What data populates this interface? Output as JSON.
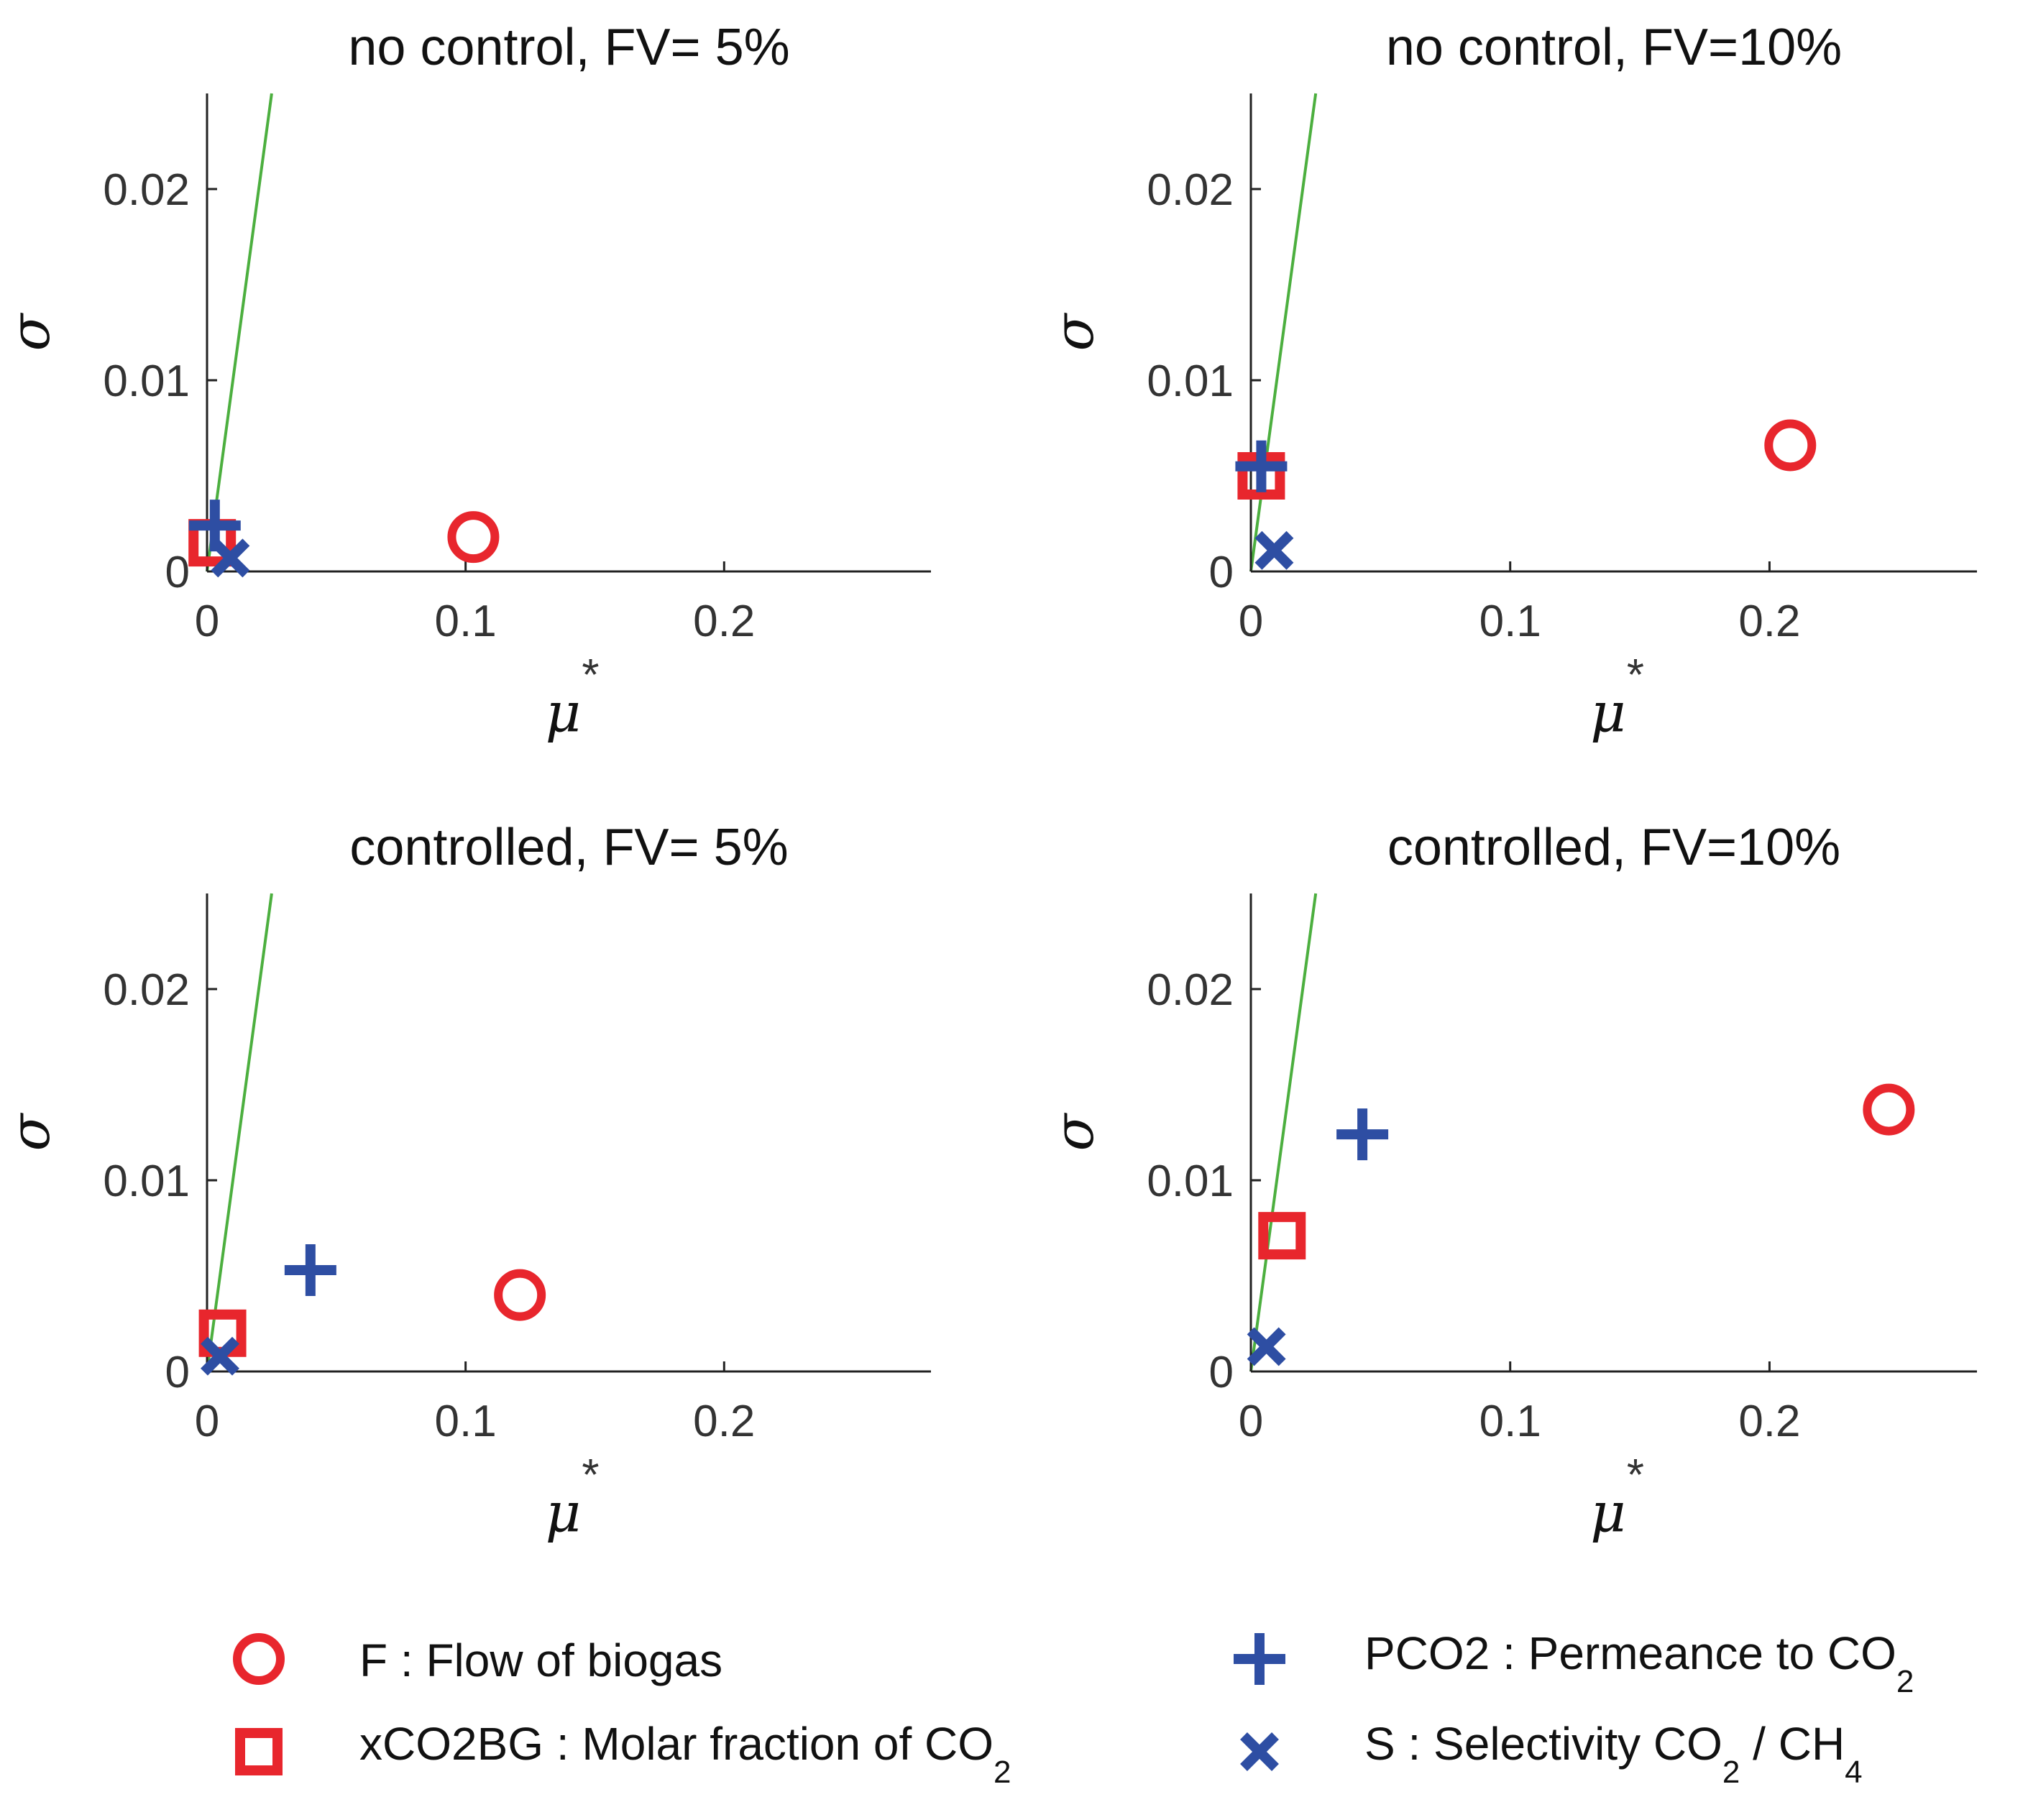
{
  "colors": {
    "red": "#e8262d",
    "blue": "#2e4ea3",
    "green": "#4caf3f",
    "axis": "#222222"
  },
  "chart_data": [
    {
      "type": "scatter",
      "title": "no control, FV= 5%",
      "xlabel": "μ",
      "xlabel_sup": "*",
      "ylabel": "σ",
      "xlim": [
        0,
        0.28
      ],
      "ylim": [
        0,
        0.025
      ],
      "xticks": [
        0,
        0.1,
        0.2
      ],
      "xtick_labels": [
        "0",
        "0.1",
        "0.2"
      ],
      "yticks": [
        0,
        0.01,
        0.02
      ],
      "ytick_labels": [
        "0",
        "0.01",
        "0.02"
      ],
      "reference_line": [
        [
          0,
          0
        ],
        [
          0.025,
          0.025
        ]
      ],
      "points": [
        {
          "param": "F",
          "marker": "circle",
          "x": 0.103,
          "y": 0.0018
        },
        {
          "param": "xCO2BG",
          "marker": "square",
          "x": 0.002,
          "y": 0.0015
        },
        {
          "param": "PCO2",
          "marker": "plus",
          "x": 0.003,
          "y": 0.0024
        },
        {
          "param": "S",
          "marker": "cross",
          "x": 0.009,
          "y": 0.0007
        }
      ]
    },
    {
      "type": "scatter",
      "title": "no control, FV=10%",
      "xlabel": "μ",
      "xlabel_sup": "*",
      "ylabel": "σ",
      "xlim": [
        0,
        0.28
      ],
      "ylim": [
        0,
        0.025
      ],
      "xticks": [
        0,
        0.1,
        0.2
      ],
      "xtick_labels": [
        "0",
        "0.1",
        "0.2"
      ],
      "yticks": [
        0,
        0.01,
        0.02
      ],
      "ytick_labels": [
        "0",
        "0.01",
        "0.02"
      ],
      "reference_line": [
        [
          0,
          0
        ],
        [
          0.025,
          0.025
        ]
      ],
      "points": [
        {
          "param": "F",
          "marker": "circle",
          "x": 0.208,
          "y": 0.0066
        },
        {
          "param": "xCO2BG",
          "marker": "square",
          "x": 0.004,
          "y": 0.005
        },
        {
          "param": "PCO2",
          "marker": "plus",
          "x": 0.004,
          "y": 0.0055
        },
        {
          "param": "S",
          "marker": "cross",
          "x": 0.009,
          "y": 0.0011
        }
      ]
    },
    {
      "type": "scatter",
      "title": "controlled, FV= 5%",
      "xlabel": "μ",
      "xlabel_sup": "*",
      "ylabel": "σ",
      "xlim": [
        0,
        0.28
      ],
      "ylim": [
        0,
        0.025
      ],
      "xticks": [
        0,
        0.1,
        0.2
      ],
      "xtick_labels": [
        "0",
        "0.1",
        "0.2"
      ],
      "yticks": [
        0,
        0.01,
        0.02
      ],
      "ytick_labels": [
        "0",
        "0.01",
        "0.02"
      ],
      "reference_line": [
        [
          0,
          0
        ],
        [
          0.025,
          0.025
        ]
      ],
      "points": [
        {
          "param": "F",
          "marker": "circle",
          "x": 0.121,
          "y": 0.004
        },
        {
          "param": "xCO2BG",
          "marker": "square",
          "x": 0.006,
          "y": 0.002
        },
        {
          "param": "PCO2",
          "marker": "plus",
          "x": 0.04,
          "y": 0.0053
        },
        {
          "param": "S",
          "marker": "cross",
          "x": 0.005,
          "y": 0.0008
        }
      ]
    },
    {
      "type": "scatter",
      "title": "controlled, FV=10%",
      "xlabel": "μ",
      "xlabel_sup": "*",
      "ylabel": "σ",
      "xlim": [
        0,
        0.28
      ],
      "ylim": [
        0,
        0.025
      ],
      "xticks": [
        0,
        0.1,
        0.2
      ],
      "xtick_labels": [
        "0",
        "0.1",
        "0.2"
      ],
      "yticks": [
        0,
        0.01,
        0.02
      ],
      "ytick_labels": [
        "0",
        "0.01",
        "0.02"
      ],
      "reference_line": [
        [
          0,
          0
        ],
        [
          0.025,
          0.025
        ]
      ],
      "points": [
        {
          "param": "F",
          "marker": "circle",
          "x": 0.246,
          "y": 0.0137
        },
        {
          "param": "xCO2BG",
          "marker": "square",
          "x": 0.012,
          "y": 0.0071
        },
        {
          "param": "PCO2",
          "marker": "plus",
          "x": 0.043,
          "y": 0.0124
        },
        {
          "param": "S",
          "marker": "cross",
          "x": 0.006,
          "y": 0.0013
        }
      ]
    }
  ],
  "legend": {
    "placement": "bottom",
    "items": [
      {
        "param": "F",
        "marker": "circle",
        "color": "red",
        "text": "F : Flow of biogas",
        "parts": []
      },
      {
        "param": "PCO2",
        "marker": "plus",
        "color": "blue",
        "text": "",
        "parts": [
          {
            "t": "PCO2 : Permeance to CO"
          },
          {
            "t": "2",
            "sub": true
          }
        ]
      },
      {
        "param": "xCO2BG",
        "marker": "square",
        "color": "red",
        "text": "",
        "parts": [
          {
            "t": "xCO2BG : Molar fraction of CO"
          },
          {
            "t": "2",
            "sub": true
          }
        ]
      },
      {
        "param": "S",
        "marker": "cross",
        "color": "blue",
        "text": "",
        "parts": [
          {
            "t": "S : Selectivity CO"
          },
          {
            "t": "2",
            "sub": true
          },
          {
            "t": " / CH"
          },
          {
            "t": "4",
            "sub": true
          }
        ]
      }
    ]
  }
}
